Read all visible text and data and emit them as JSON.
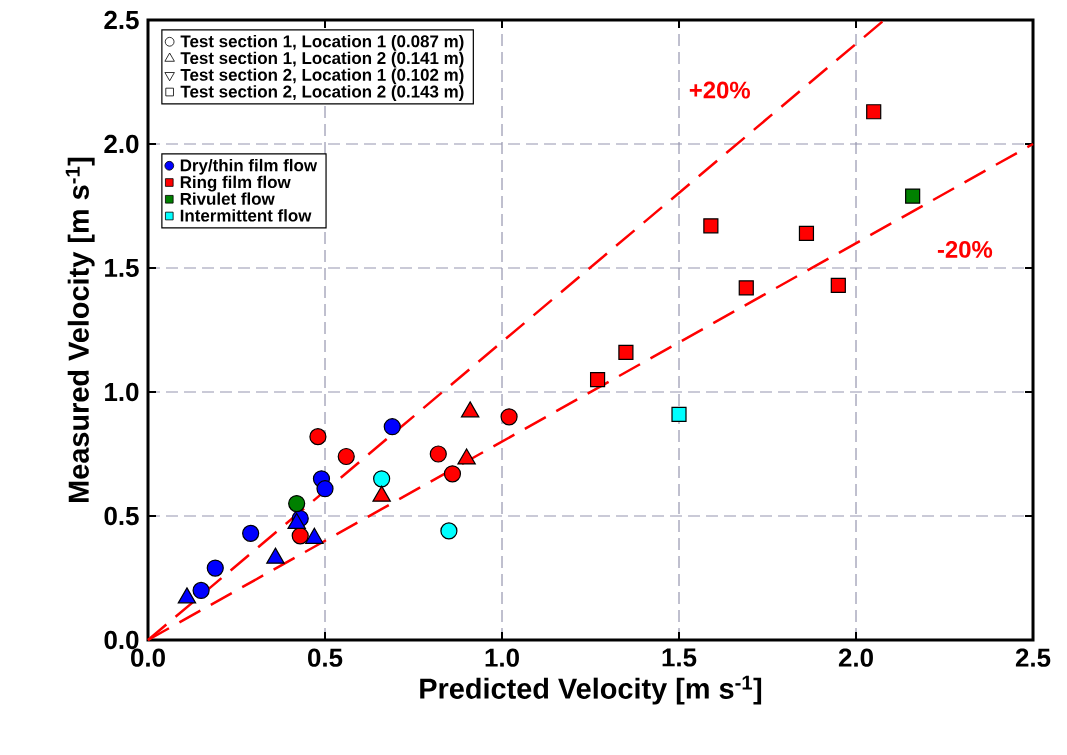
{
  "chart_data": {
    "type": "scatter",
    "xlabel": "Predicted Velocity [m s$^{-1}$]",
    "ylabel": "Measured Velocity [m s$^{-1}$]",
    "xlim": [
      0,
      2.5
    ],
    "ylim": [
      0,
      2.5
    ],
    "xticks": [
      {
        "value": 0,
        "label": "0.0"
      },
      {
        "value": 0.5,
        "label": "0.5"
      },
      {
        "value": 1,
        "label": "1.0"
      },
      {
        "value": 1.5,
        "label": "1.5"
      },
      {
        "value": 2,
        "label": "2.0"
      },
      {
        "value": 2.5,
        "label": "2.5"
      }
    ],
    "yticks": [
      {
        "value": 0,
        "label": "0.0"
      },
      {
        "value": 0.5,
        "label": "0.5"
      },
      {
        "value": 1,
        "label": "1.0"
      },
      {
        "value": 1.5,
        "label": "1.5"
      },
      {
        "value": 2,
        "label": "2.0"
      },
      {
        "value": 2.5,
        "label": "2.5"
      }
    ],
    "grid": true,
    "legend": "top left",
    "series": [
      {
        "type": "line",
        "line_style": "dashed",
        "marker": "none",
        "color": "#ff0000",
        "x": [
          0,
          2.08
        ],
        "values": [
          0,
          2.5
        ]
      },
      {
        "type": "line",
        "line_style": "dashed",
        "marker": "none",
        "color": "#ff0000",
        "x": [
          0,
          2.5
        ],
        "values": [
          0,
          2.0
        ]
      },
      {
        "marker": "circle",
        "color": "#0000ff",
        "x": [
          0.15,
          0.19,
          0.29,
          0.43,
          0.49,
          0.5,
          0.69
        ],
        "values": [
          0.2,
          0.29,
          0.43,
          0.49,
          0.65,
          0.61,
          0.86
        ]
      },
      {
        "marker": "circle",
        "color": "#ff0000",
        "x": [
          0.43,
          0.48,
          0.56,
          0.82,
          0.86,
          1.02
        ],
        "values": [
          0.42,
          0.82,
          0.74,
          0.75,
          0.67,
          0.9
        ]
      },
      {
        "marker": "circle",
        "color": "#008000",
        "x": [
          0.42
        ],
        "values": [
          0.55
        ]
      },
      {
        "marker": "circle",
        "color": "#00ffff",
        "x": [
          0.66,
          0.85
        ],
        "values": [
          0.65,
          0.44
        ]
      },
      {
        "marker": "triangle",
        "color": "#0000ff",
        "x": [
          0.11,
          0.36,
          0.47,
          0.42
        ],
        "values": [
          0.17,
          0.33,
          0.41,
          0.47
        ]
      },
      {
        "marker": "triangle",
        "color": "#ff0000",
        "x": [
          0.66,
          0.91,
          0.9
        ],
        "values": [
          0.58,
          0.92,
          0.73
        ]
      },
      {
        "marker": "square",
        "color": "#ff0000",
        "x": [
          2.05,
          1.59,
          1.86,
          1.69,
          1.95,
          1.35,
          1.27
        ],
        "values": [
          2.13,
          1.67,
          1.64,
          1.42,
          1.43,
          1.16,
          1.05
        ]
      },
      {
        "marker": "square",
        "color": "#008000",
        "x": [
          2.16
        ],
        "values": [
          1.79
        ]
      },
      {
        "marker": "square",
        "color": "#00ffff",
        "x": [
          1.5
        ],
        "values": [
          0.91
        ]
      },
      {
        "name": "Test section 1, Location 1 (0.087 m)",
        "marker": "circle",
        "color": "#ffffff"
      },
      {
        "name": "Test section 1, Location 2 (0.141 m)",
        "marker": "triangle",
        "color": "#ffffff"
      },
      {
        "name": "Test section 2, Location 1 (0.102 m)",
        "marker": "triangle-down",
        "color": "#ffffff"
      },
      {
        "name": "Test section 2, Location 2 (0.143 m)",
        "marker": "square",
        "color": "#ffffff"
      },
      {
        "name": "Dry/thin film flow",
        "marker": "circle",
        "color": "#0000ff"
      },
      {
        "name": "Ring film flow",
        "marker": "square",
        "color": "#ff0000"
      },
      {
        "name": "Rivulet flow",
        "marker": "square",
        "color": "#008000"
      },
      {
        "name": "Intermittent flow",
        "marker": "square",
        "color": "#00ffff"
      }
    ],
    "annotations": [
      "+20%",
      "-20%"
    ]
  }
}
